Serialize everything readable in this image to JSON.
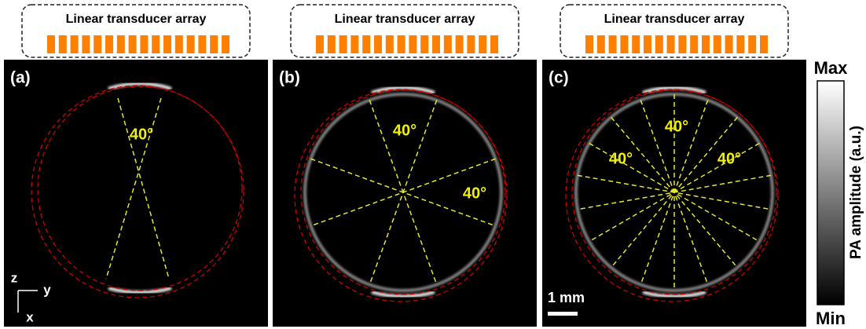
{
  "panels": [
    {
      "label": "(a)",
      "array_label": "Linear transducer array",
      "angle_labels": [
        "40°"
      ]
    },
    {
      "label": "(b)",
      "array_label": "Linear transducer array",
      "angle_labels": [
        "40°",
        "40°"
      ]
    },
    {
      "label": "(c)",
      "array_label": "Linear transducer array",
      "angle_labels": [
        "40°",
        "40°",
        "40°"
      ]
    }
  ],
  "colorbar": {
    "max": "Max",
    "min": "Min",
    "label": "PA amplitude (a.u.)"
  },
  "scale_bar": "1 mm",
  "axes": {
    "z": "z",
    "y": "y",
    "x": "x"
  }
}
